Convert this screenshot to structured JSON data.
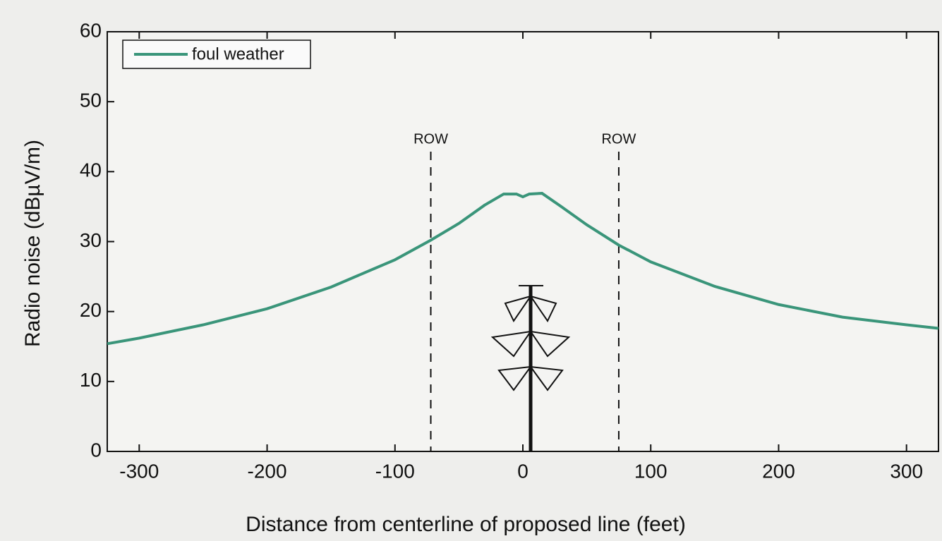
{
  "chart_data": {
    "type": "line",
    "xlabel": "Distance from centerline of proposed line (feet)",
    "ylabel": "Radio noise (dBµV/m)",
    "x": [
      -325,
      -300,
      -250,
      -200,
      -150,
      -100,
      -72,
      -50,
      -30,
      -15,
      -5,
      0,
      5,
      15,
      30,
      50,
      75,
      100,
      150,
      200,
      250,
      300,
      325
    ],
    "series": [
      {
        "name": "foul weather",
        "color": "#3a957a",
        "values": [
          15.4,
          16.2,
          18.1,
          20.4,
          23.5,
          27.4,
          30.2,
          32.6,
          35.2,
          36.8,
          36.8,
          36.4,
          36.8,
          36.9,
          35.0,
          32.4,
          29.5,
          27.1,
          23.6,
          21.0,
          19.2,
          18.1,
          17.6
        ]
      }
    ],
    "annotations": [
      {
        "text": "ROW",
        "x": -72
      },
      {
        "text": "ROW",
        "x": 75
      }
    ],
    "xlim": [
      -325,
      325
    ],
    "ylim": [
      0,
      60
    ],
    "xticks": [
      -300,
      -200,
      -100,
      0,
      100,
      200,
      300
    ],
    "yticks": [
      0,
      10,
      20,
      30,
      40,
      50,
      60
    ],
    "legend": "upper left"
  }
}
